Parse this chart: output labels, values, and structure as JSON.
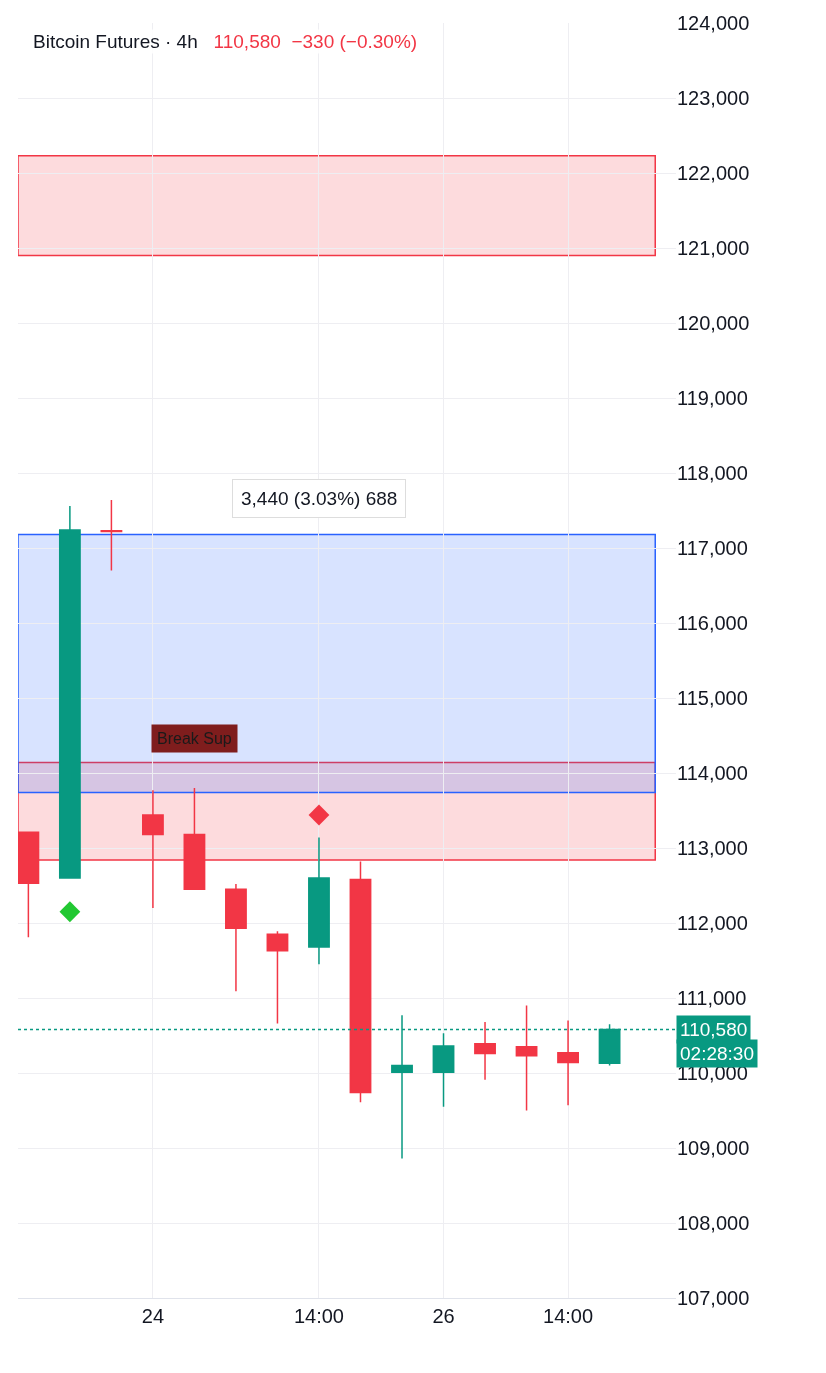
{
  "chart_data": {
    "type": "candlestick",
    "title": "Bitcoin Futures · 4h",
    "subtitle": "110,580  −330 (−0.30%)",
    "categories": [
      null,
      null,
      null,
      "24",
      null,
      null,
      null,
      "14:00",
      null,
      null,
      "26",
      null,
      null,
      "14:00",
      null
    ],
    "ohlc": [
      [
        113210,
        113210,
        111810,
        112530
      ],
      [
        112600,
        117560,
        112600,
        117240
      ],
      [
        117230,
        117640,
        116700,
        117220
      ],
      [
        113440,
        113770,
        112200,
        113180
      ],
      [
        113180,
        113800,
        112450,
        112450
      ],
      [
        112450,
        112520,
        111090,
        111930
      ],
      [
        111850,
        111890,
        110660,
        111630
      ],
      [
        111680,
        113140,
        111450,
        112600
      ],
      [
        112580,
        112820,
        109610,
        109740
      ],
      [
        110010,
        110770,
        108860,
        110100
      ],
      [
        110010,
        110530,
        109550,
        110360
      ],
      [
        110390,
        110680,
        109910,
        110260
      ],
      [
        110350,
        110900,
        109500,
        110230
      ],
      [
        110270,
        110700,
        109570,
        110140
      ],
      [
        110130,
        110650,
        110100,
        110580
      ]
    ],
    "series": [
      {
        "type": "scatter",
        "marker": "diamond",
        "color": "#22c832",
        "values": [
          null,
          112150,
          null,
          null,
          null,
          null,
          null,
          null,
          null,
          null,
          null,
          null,
          null,
          null,
          null
        ]
      },
      {
        "type": "scatter",
        "marker": "diamond",
        "color": "#f23645",
        "values": [
          null,
          null,
          null,
          null,
          null,
          null,
          null,
          113440,
          null,
          null,
          null,
          null,
          null,
          null,
          null
        ]
      }
    ],
    "ylim": [
      107000,
      124000
    ],
    "yticks": [
      {
        "value": 107000,
        "label": "107,000"
      },
      {
        "value": 108000,
        "label": "108,000"
      },
      {
        "value": 109000,
        "label": "109,000"
      },
      {
        "value": 110000,
        "label": "110,000"
      },
      {
        "value": 111000,
        "label": "111,000"
      },
      {
        "value": 112000,
        "label": "112,000"
      },
      {
        "value": 113000,
        "label": "113,000"
      },
      {
        "value": 114000,
        "label": "114,000"
      },
      {
        "value": 115000,
        "label": "115,000"
      },
      {
        "value": 116000,
        "label": "116,000"
      },
      {
        "value": 117000,
        "label": "117,000"
      },
      {
        "value": 118000,
        "label": "118,000"
      },
      {
        "value": 119000,
        "label": "119,000"
      },
      {
        "value": 120000,
        "label": "120,000"
      },
      {
        "value": 121000,
        "label": "121,000"
      },
      {
        "value": 122000,
        "label": "122,000"
      },
      {
        "value": 123000,
        "label": "123,000"
      },
      {
        "value": 124000,
        "label": "124,000"
      }
    ],
    "bands": [
      {
        "axis": "y",
        "from": 120900,
        "to": 122230,
        "color": "#f23645"
      },
      {
        "axis": "y",
        "from": 112840,
        "to": 114140,
        "color": "#f23645"
      },
      {
        "axis": "y",
        "from": 113740,
        "to": 117180,
        "color": "#2962ff",
        "label": "3,440 (3.03%) 688"
      }
    ],
    "ref_lines": [
      {
        "axis": "y",
        "value": 110580,
        "label": "110,580",
        "color": "#089981",
        "line_style": "dotted"
      }
    ],
    "annotations": [
      {
        "text": "Break Sup",
        "y": 114140
      },
      "02:28:30"
    ],
    "grid": true
  }
}
